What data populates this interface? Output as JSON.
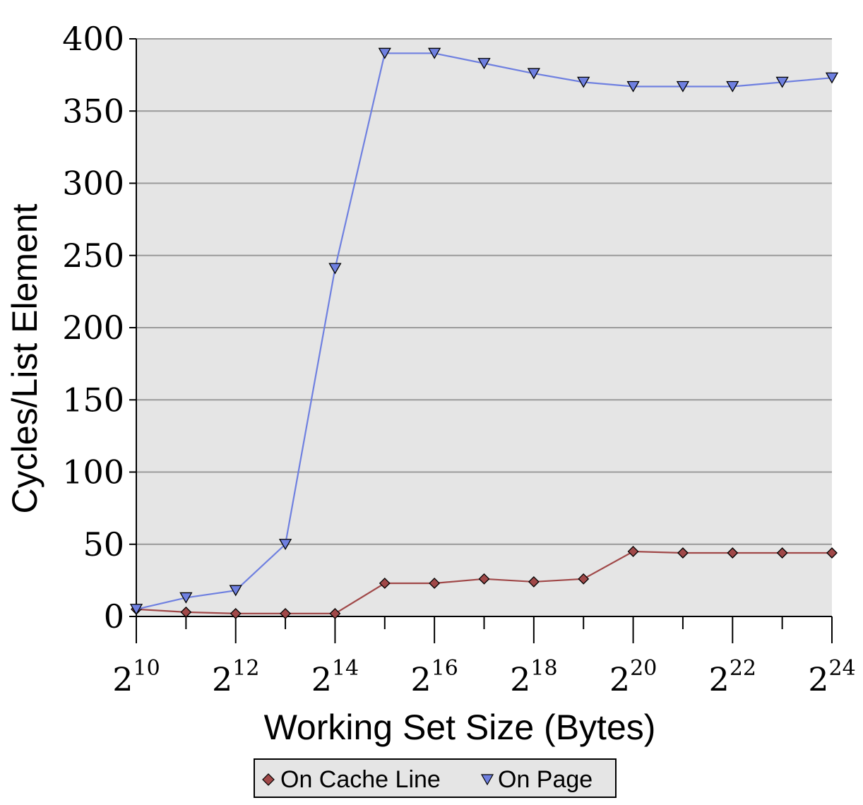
{
  "chart_data": {
    "type": "line",
    "xlabel": "Working Set Size (Bytes)",
    "ylabel": "Cycles/List Element",
    "x": [
      10,
      11,
      12,
      13,
      14,
      15,
      16,
      17,
      18,
      19,
      20,
      21,
      22,
      23,
      24
    ],
    "x_scale": "log2",
    "x_tick_labels": [
      {
        "base": "2",
        "exp": "10"
      },
      {
        "base": "2",
        "exp": "12"
      },
      {
        "base": "2",
        "exp": "14"
      },
      {
        "base": "2",
        "exp": "16"
      },
      {
        "base": "2",
        "exp": "18"
      },
      {
        "base": "2",
        "exp": "20"
      },
      {
        "base": "2",
        "exp": "22"
      },
      {
        "base": "2",
        "exp": "24"
      }
    ],
    "xlim": [
      10,
      24
    ],
    "ylim": [
      0,
      400
    ],
    "y_ticks": [
      "0",
      "50",
      "100",
      "150",
      "200",
      "250",
      "300",
      "350",
      "400"
    ],
    "grid": true,
    "legend_position": "bottom",
    "series": [
      {
        "name": "On Cache Line",
        "marker": "diamond",
        "color": "#a04848",
        "values": [
          5,
          3,
          2,
          2,
          2,
          23,
          23,
          26,
          24,
          26,
          45,
          44,
          44,
          44,
          44
        ]
      },
      {
        "name": "On Page",
        "marker": "triangle-down",
        "color": "#6f80e0",
        "values": [
          5,
          13,
          18,
          50,
          241,
          390,
          390,
          383,
          376,
          370,
          367,
          367,
          367,
          370,
          373
        ]
      }
    ]
  }
}
